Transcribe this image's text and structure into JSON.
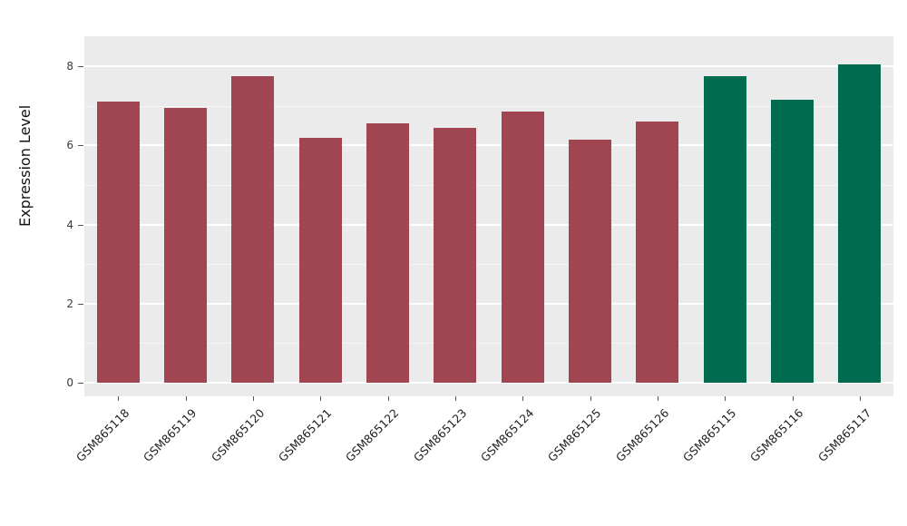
{
  "chart_data": {
    "type": "bar",
    "title": "",
    "xlabel": "",
    "ylabel": "Expression Level",
    "ylim": [
      0,
      8
    ],
    "yticks": [
      0,
      2,
      4,
      6,
      8
    ],
    "grid": "on",
    "legend": "none",
    "panel_background": "#ebebeb",
    "categories": [
      "GSM865118",
      "GSM865119",
      "GSM865120",
      "GSM865121",
      "GSM865122",
      "GSM865123",
      "GSM865124",
      "GSM865125",
      "GSM865126",
      "GSM865115",
      "GSM865116",
      "GSM865117"
    ],
    "values": [
      7.1,
      6.95,
      7.75,
      6.2,
      6.55,
      6.45,
      6.85,
      6.15,
      6.6,
      7.75,
      7.15,
      8.05
    ],
    "bar_colors": [
      "#a04552",
      "#a04552",
      "#a04552",
      "#a04552",
      "#a04552",
      "#a04552",
      "#a04552",
      "#a04552",
      "#a04552",
      "#006b4e",
      "#006b4e",
      "#006b4e"
    ],
    "group_colors": {
      "first_group": "#a04552",
      "second_group": "#006b4e"
    }
  }
}
